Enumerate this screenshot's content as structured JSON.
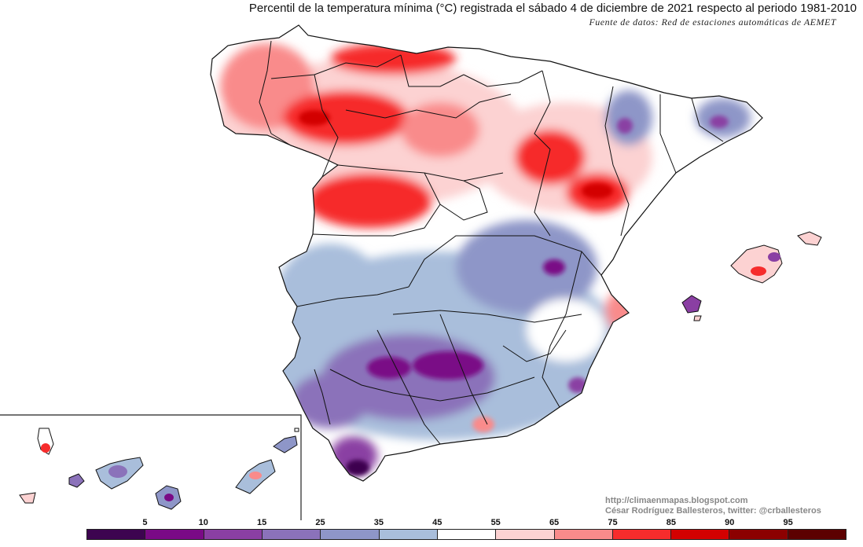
{
  "header": {
    "title": "Percentil de la temperatura mínima (°C) registrada el sábado 4 de diciembre de 2021 respecto al periodo 1981-2010",
    "subtitle": "Fuente de datos: Red de estaciones automáticas de AEMET"
  },
  "credits": {
    "blog": "http://climaenmapas.blogspot.com",
    "author": "César Rodríguez Ballesteros, twitter: @crballesteros"
  },
  "legend": {
    "ticks": [
      "5",
      "10",
      "15",
      "25",
      "35",
      "45",
      "55",
      "65",
      "75",
      "85",
      "90",
      "95"
    ],
    "colors": [
      "#3d0450",
      "#7a0a86",
      "#8a3fa3",
      "#8b72ba",
      "#8e96c8",
      "#a9bedb",
      "#ffffff",
      "#fcd2d2",
      "#f98b8b",
      "#f62c2c",
      "#d30000",
      "#8c0000",
      "#5c0000"
    ]
  },
  "colors": {
    "cold_max": "#3d0450",
    "cold_strong": "#7a0a86",
    "cold": "#8e96c8",
    "neutral": "#ffffff",
    "warm": "#f98b8b",
    "warm_strong": "#f62c2c",
    "hot": "#d30000",
    "border": "#111111"
  }
}
